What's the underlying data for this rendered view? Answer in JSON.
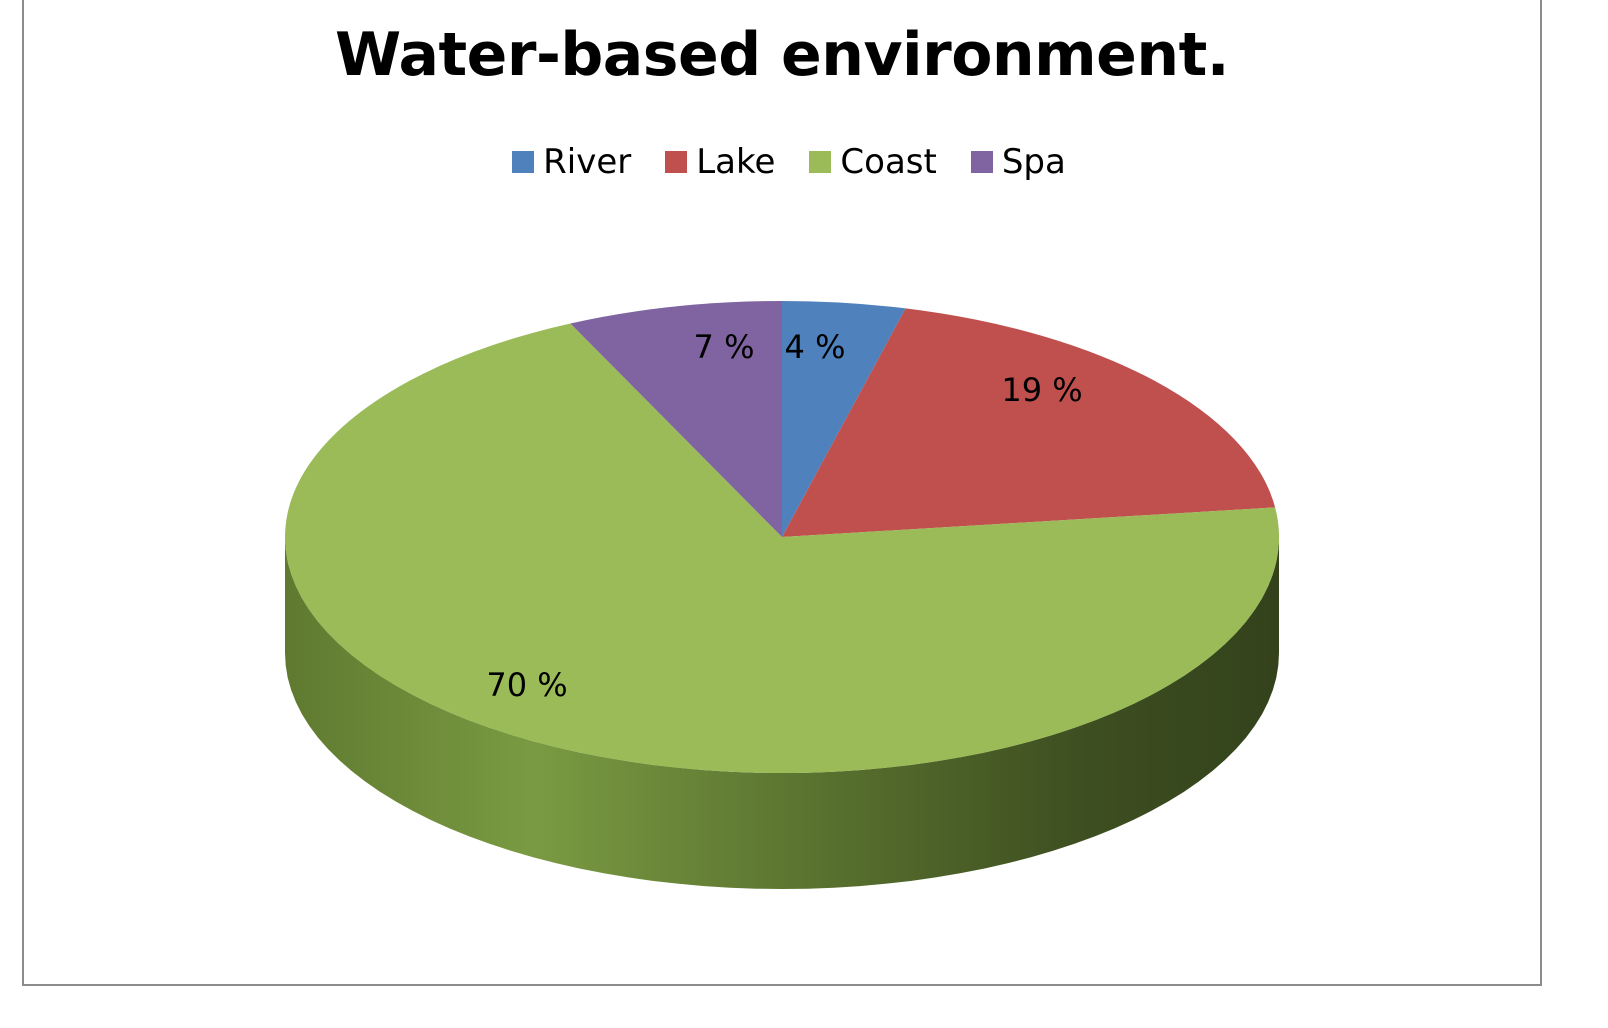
{
  "chart_data": {
    "type": "pie",
    "title": "Water-based environment.",
    "categories": [
      "River",
      "Lake",
      "Coast",
      "Spa"
    ],
    "values": [
      4,
      19,
      70,
      7
    ],
    "value_labels": [
      "4 %",
      "19 %",
      "70 %",
      "7 %"
    ],
    "colors": [
      "#4f81bd",
      "#c0504d",
      "#9bbb59",
      "#8064a2"
    ],
    "side_colors": [
      "#3b6190",
      "#8f3b39",
      "#6f8a3c",
      "#5f4b7a"
    ],
    "legend_position": "top",
    "style": "3d"
  }
}
